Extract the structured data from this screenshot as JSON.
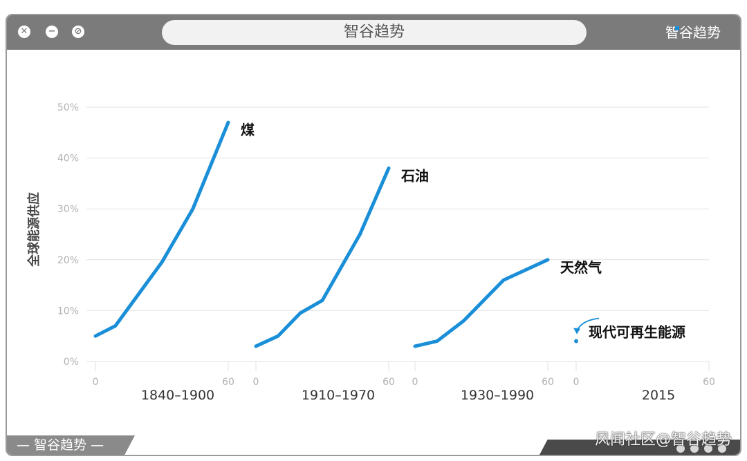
{
  "window": {
    "title": "智谷趋势",
    "brand": "智谷趋势",
    "bottom_tab": "— 智谷趋势 —",
    "watermark": "风闻社区@智谷趋势"
  },
  "controls": {
    "close_glyph": "✕",
    "min_glyph": "−",
    "block_glyph": "⊘"
  },
  "colors": {
    "line": "#1a8fd8",
    "grid": "#e2e2e2"
  },
  "chart_data": {
    "type": "line",
    "title": "",
    "ylabel": "全球能源供应",
    "ylim": [
      0,
      50
    ],
    "yticks": [
      "0%",
      "10%",
      "20%",
      "30%",
      "40%",
      "50%"
    ],
    "grid": true,
    "panels": [
      {
        "category": "1840–1900",
        "xlim": [
          0,
          60
        ],
        "xticks": [
          "0",
          "60"
        ],
        "series": {
          "name": "煤",
          "x": [
            0,
            9,
            30,
            44,
            60
          ],
          "values": [
            5,
            7,
            19.5,
            30,
            47
          ]
        }
      },
      {
        "category": "1910–1970",
        "xlim": [
          0,
          60
        ],
        "xticks": [
          "0",
          "60"
        ],
        "series": {
          "name": "石油",
          "x": [
            0,
            10,
            20,
            30,
            47,
            60
          ],
          "values": [
            3,
            5,
            9.5,
            12,
            25,
            38
          ]
        }
      },
      {
        "category": "1930–1990",
        "xlim": [
          0,
          60
        ],
        "xticks": [
          "0",
          "60"
        ],
        "series": {
          "name": "天然气",
          "x": [
            0,
            10,
            22,
            40,
            60
          ],
          "values": [
            3,
            4,
            8,
            16,
            20
          ]
        }
      },
      {
        "category": "2015",
        "xlim": [
          0,
          60
        ],
        "xticks": [
          "0",
          "60"
        ],
        "series": {
          "name": "现代可再生能源",
          "x": [
            0
          ],
          "values": [
            4
          ]
        }
      }
    ]
  }
}
